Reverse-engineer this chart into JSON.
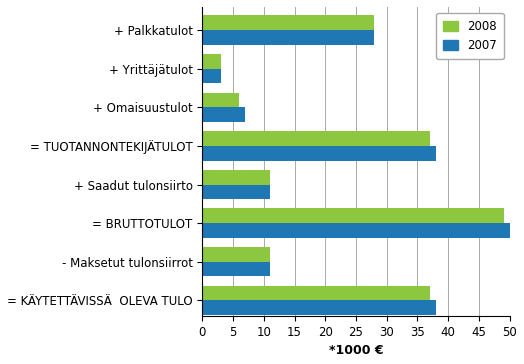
{
  "categories": [
    "+ Palkkatulot",
    "+ Yrittäjätulot",
    "+ Omaisuustulot",
    "= TUOTANNONTEKIJÄTULOT",
    "+ Saadut tulonsiirto",
    "= BRUTTOTULOT",
    "- Maksetut tulonsiirrot",
    "= KÄYTETTÄVISSÄ  OLEVA TULO"
  ],
  "values_2008": [
    28,
    3,
    6,
    37,
    11,
    49,
    11,
    37
  ],
  "values_2007": [
    28,
    3,
    7,
    38,
    11,
    50,
    11,
    38
  ],
  "color_2008": "#8dc63f",
  "color_2007": "#1f77b4",
  "xlabel": "*1000 €",
  "xlim": [
    0,
    50
  ],
  "xticks": [
    0,
    5,
    10,
    15,
    20,
    25,
    30,
    35,
    40,
    45,
    50
  ],
  "legend_2008": "2008",
  "legend_2007": "2007",
  "bar_height": 0.38,
  "label_fontsize": 9,
  "tick_fontsize": 8.5
}
